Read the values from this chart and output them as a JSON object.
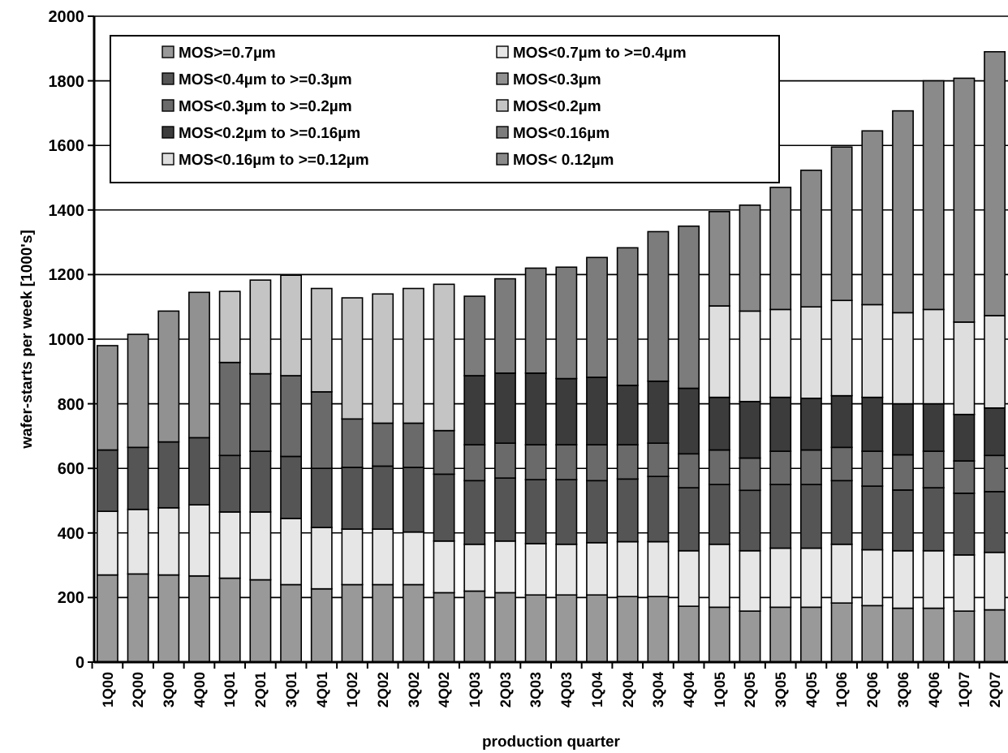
{
  "chart_data": {
    "type": "bar",
    "stacked": true,
    "xlabel": "production quarter",
    "ylabel": "wafer-starts per week [1000's]",
    "categories": [
      "1Q00",
      "2Q00",
      "3Q00",
      "4Q00",
      "1Q01",
      "2Q01",
      "3Q01",
      "4Q01",
      "1Q02",
      "2Q02",
      "3Q02",
      "4Q02",
      "1Q03",
      "2Q03",
      "3Q03",
      "4Q03",
      "1Q04",
      "2Q04",
      "3Q04",
      "4Q04",
      "1Q05",
      "2Q05",
      "3Q05",
      "4Q05",
      "1Q06",
      "2Q06",
      "3Q06",
      "4Q06",
      "1Q07",
      "2Q07"
    ],
    "ylim": [
      0,
      2000
    ],
    "yticks": [
      0,
      200,
      400,
      600,
      800,
      1000,
      1200,
      1400,
      1600,
      1800,
      2000
    ],
    "grid": "y",
    "legend": "top left",
    "series": [
      {
        "name": "MOS>=0.7µm",
        "color": "#999999",
        "values": [
          270,
          273,
          270,
          267,
          260,
          255,
          240,
          227,
          240,
          240,
          240,
          215,
          220,
          215,
          208,
          208,
          208,
          203,
          203,
          173,
          170,
          158,
          170,
          170,
          183,
          175,
          167,
          167,
          158,
          162
        ]
      },
      {
        "name": "MOS<0.7µm to >=0.4µm",
        "color": "#e6e6e6",
        "values": [
          197,
          200,
          208,
          220,
          205,
          210,
          205,
          190,
          172,
          172,
          163,
          160,
          145,
          160,
          159,
          157,
          162,
          170,
          170,
          172,
          195,
          187,
          183,
          183,
          182,
          173,
          178,
          178,
          174,
          178
        ]
      },
      {
        "name": "MOS<0.4µm to >=0.3µm",
        "color": "#555555",
        "values": [
          190,
          192,
          204,
          208,
          175,
          188,
          192,
          183,
          191,
          195,
          200,
          207,
          197,
          195,
          198,
          200,
          192,
          194,
          202,
          195,
          185,
          187,
          197,
          197,
          197,
          197,
          188,
          195,
          191,
          188
        ]
      },
      {
        "name": "MOS<0.3µm",
        "color": "#919191",
        "values": [
          323,
          350,
          405,
          450,
          null,
          null,
          null,
          null,
          null,
          null,
          null,
          null,
          null,
          null,
          null,
          null,
          null,
          null,
          null,
          null,
          null,
          null,
          null,
          null,
          null,
          null,
          null,
          null,
          null,
          null
        ]
      },
      {
        "name": "MOS<0.3µm to >=0.2µm",
        "color": "#6a6a6a",
        "values": [
          null,
          null,
          null,
          null,
          288,
          240,
          250,
          237,
          150,
          133,
          137,
          135,
          111,
          108,
          108,
          108,
          111,
          106,
          103,
          105,
          107,
          100,
          103,
          107,
          103,
          108,
          109,
          113,
          100,
          112
        ]
      },
      {
        "name": "MOS<0.2µm",
        "color": "#c4c4c4",
        "values": [
          null,
          null,
          null,
          null,
          220,
          290,
          311,
          320,
          375,
          400,
          417,
          453,
          null,
          null,
          null,
          null,
          null,
          null,
          null,
          null,
          null,
          null,
          null,
          null,
          null,
          null,
          null,
          null,
          null,
          null
        ]
      },
      {
        "name": "MOS<0.2µm to >=0.16µm",
        "color": "#3c3c3c",
        "values": [
          null,
          null,
          null,
          null,
          null,
          null,
          null,
          null,
          null,
          null,
          null,
          null,
          214,
          217,
          222,
          205,
          209,
          184,
          192,
          203,
          163,
          175,
          167,
          160,
          160,
          167,
          158,
          147,
          144,
          147
        ]
      },
      {
        "name": "MOS<0.16µm",
        "color": "#7c7c7c",
        "values": [
          null,
          null,
          null,
          null,
          null,
          null,
          null,
          null,
          null,
          null,
          null,
          null,
          246,
          292,
          325,
          345,
          371,
          426,
          463,
          502,
          null,
          null,
          null,
          null,
          null,
          null,
          null,
          null,
          null,
          null
        ]
      },
      {
        "name": "MOS<0.16µm to >=0.12µm",
        "color": "#dedede",
        "values": [
          null,
          null,
          null,
          null,
          null,
          null,
          null,
          null,
          null,
          null,
          null,
          null,
          null,
          null,
          null,
          null,
          null,
          null,
          null,
          null,
          283,
          280,
          272,
          283,
          295,
          287,
          282,
          292,
          286,
          286
        ]
      },
      {
        "name": "MOS< 0.12µm",
        "color": "#8a8a8a",
        "values": [
          null,
          null,
          null,
          null,
          null,
          null,
          null,
          null,
          null,
          null,
          null,
          null,
          null,
          null,
          null,
          null,
          null,
          null,
          null,
          null,
          292,
          328,
          378,
          423,
          475,
          538,
          625,
          708,
          755,
          817
        ]
      }
    ]
  }
}
